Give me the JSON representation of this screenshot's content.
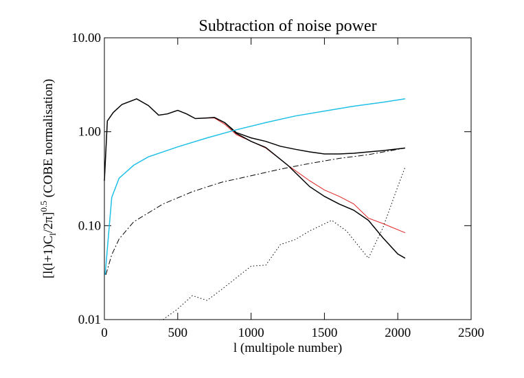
{
  "chart_data": {
    "type": "line",
    "title": "Subtraction of noise power",
    "x_label": "l (multipole number)",
    "y_label": {
      "main": "[l(l+1)C",
      "sub": "l",
      "mid": "/2π]",
      "sup": "0.5",
      "tail": " (COBE normalisation)"
    },
    "log_y": true,
    "xlim": [
      0,
      2500
    ],
    "xticks": [
      0,
      500,
      1000,
      1500,
      2000,
      2500
    ],
    "ylim": [
      0.01,
      10
    ],
    "yticks": [
      {
        "value": 10,
        "label": "10.00"
      },
      {
        "value": 1,
        "label": "1.00"
      },
      {
        "value": 0.1,
        "label": "0.10"
      },
      {
        "value": 0.01,
        "label": "0.01"
      }
    ],
    "series": [
      {
        "color": "#e02020",
        "dash": "none",
        "width": 1,
        "x": [
          0,
          20,
          60,
          120,
          220,
          300,
          370,
          430,
          500,
          560,
          620,
          690,
          750,
          820,
          900,
          1000,
          1100,
          1250,
          1400,
          1500,
          1600,
          1700,
          1800,
          1900,
          2050
        ],
        "values": [
          0.3,
          1.3,
          1.6,
          1.95,
          2.24,
          1.9,
          1.5,
          1.55,
          1.69,
          1.55,
          1.38,
          1.4,
          1.4,
          1.2,
          0.93,
          0.79,
          0.67,
          0.44,
          0.3,
          0.24,
          0.205,
          0.17,
          0.12,
          0.105,
          0.084
        ]
      },
      {
        "color": "#000000",
        "dash": "none",
        "width": 1.5,
        "x": [
          0,
          20,
          60,
          120,
          220,
          300,
          370,
          430,
          500,
          560,
          620,
          690,
          750,
          820,
          900,
          1000,
          1100,
          1200,
          1300,
          1400,
          1500,
          1600,
          1700,
          1800,
          1900,
          2050
        ],
        "values": [
          0.3,
          1.3,
          1.6,
          1.95,
          2.24,
          1.9,
          1.5,
          1.55,
          1.69,
          1.55,
          1.38,
          1.4,
          1.42,
          1.25,
          0.98,
          0.86,
          0.79,
          0.7,
          0.65,
          0.61,
          0.58,
          0.58,
          0.59,
          0.61,
          0.63,
          0.67
        ]
      },
      {
        "color": "#000000",
        "dash": "none",
        "width": 1.5,
        "x": [
          820,
          900,
          1000,
          1100,
          1250,
          1400,
          1500,
          1600,
          1700,
          1800,
          1900,
          2000,
          2050
        ],
        "values": [
          1.25,
          0.96,
          0.79,
          0.68,
          0.44,
          0.26,
          0.205,
          0.17,
          0.146,
          0.114,
          0.074,
          0.05,
          0.045
        ]
      },
      {
        "color": "#1ec0e8",
        "dash": "none",
        "width": 1.5,
        "x": [
          5,
          50,
          100,
          200,
          300,
          500,
          700,
          900,
          1100,
          1300,
          1500,
          1700,
          1900,
          2050
        ],
        "values": [
          0.03,
          0.2,
          0.32,
          0.44,
          0.54,
          0.69,
          0.86,
          1.05,
          1.25,
          1.47,
          1.66,
          1.87,
          2.06,
          2.24
        ]
      },
      {
        "color": "#000000",
        "dash": "8,3,2,3",
        "width": 1,
        "x": [
          10,
          50,
          100,
          200,
          400,
          600,
          800,
          1000,
          1200,
          1400,
          1600,
          1800,
          2050
        ],
        "values": [
          0.03,
          0.049,
          0.072,
          0.11,
          0.17,
          0.23,
          0.29,
          0.34,
          0.4,
          0.46,
          0.52,
          0.57,
          0.67
        ]
      },
      {
        "color": "#000000",
        "dash": "1.5,3",
        "width": 1,
        "x": [
          400,
          500,
          600,
          700,
          800,
          1000,
          1100,
          1200,
          1300,
          1400,
          1550,
          1650,
          1800,
          1900,
          2000,
          2050
        ],
        "values": [
          0.01,
          0.013,
          0.018,
          0.016,
          0.021,
          0.037,
          0.038,
          0.063,
          0.071,
          0.088,
          0.114,
          0.088,
          0.045,
          0.096,
          0.26,
          0.42
        ]
      }
    ]
  }
}
